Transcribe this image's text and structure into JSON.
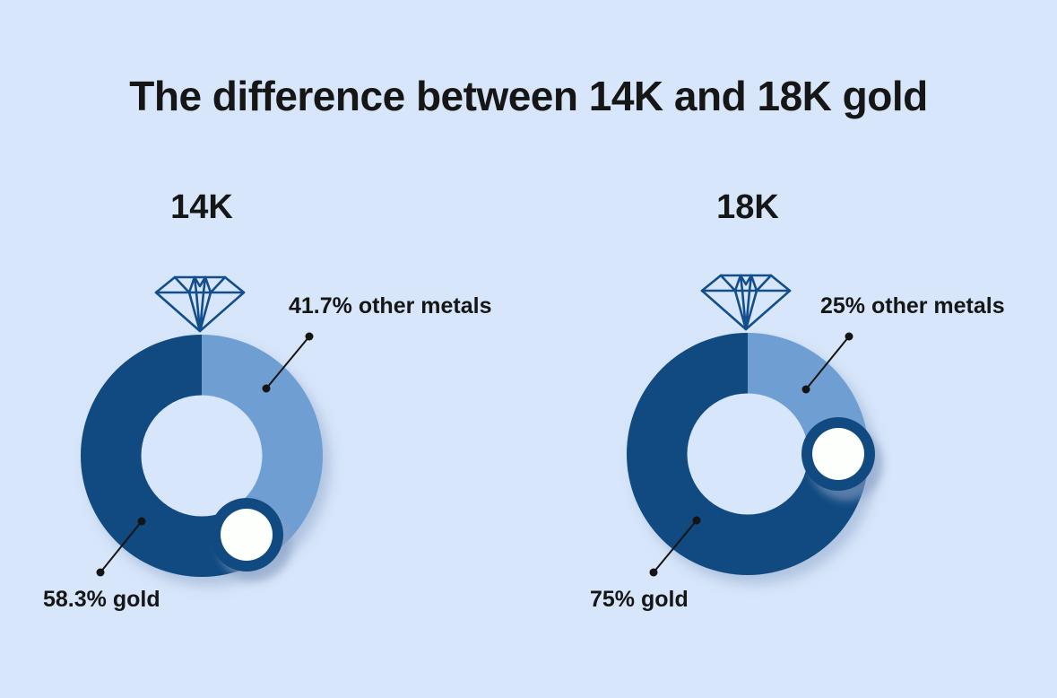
{
  "title": "The difference between 14K and 18K gold",
  "colors": {
    "background": "#d7e6fa",
    "gold": "#114a80",
    "other_metals": "#6f9ed3",
    "donut_hole": "#d7e6fa",
    "gem_fill": "#fdfffd",
    "gem_ring": "#114a80",
    "diamond_outline": "#134e8c",
    "text": "#161616",
    "leader_line": "#141414"
  },
  "chart_data": [
    {
      "type": "donut",
      "title": "14K",
      "legend_position": "none",
      "start_angle_deg": 0,
      "direction": "clockwise-from-top",
      "slices": [
        {
          "label": "gold",
          "value": 58.3,
          "annotation": "58.3% gold"
        },
        {
          "label": "other metals",
          "value": 41.7,
          "annotation": "41.7% other metals"
        }
      ]
    },
    {
      "type": "donut",
      "title": "18K",
      "legend_position": "none",
      "start_angle_deg": 0,
      "direction": "clockwise-from-top",
      "slices": [
        {
          "label": "gold",
          "value": 75,
          "annotation": "75% gold"
        },
        {
          "label": "other metals",
          "value": 25,
          "annotation": "25% other metals"
        }
      ]
    }
  ]
}
